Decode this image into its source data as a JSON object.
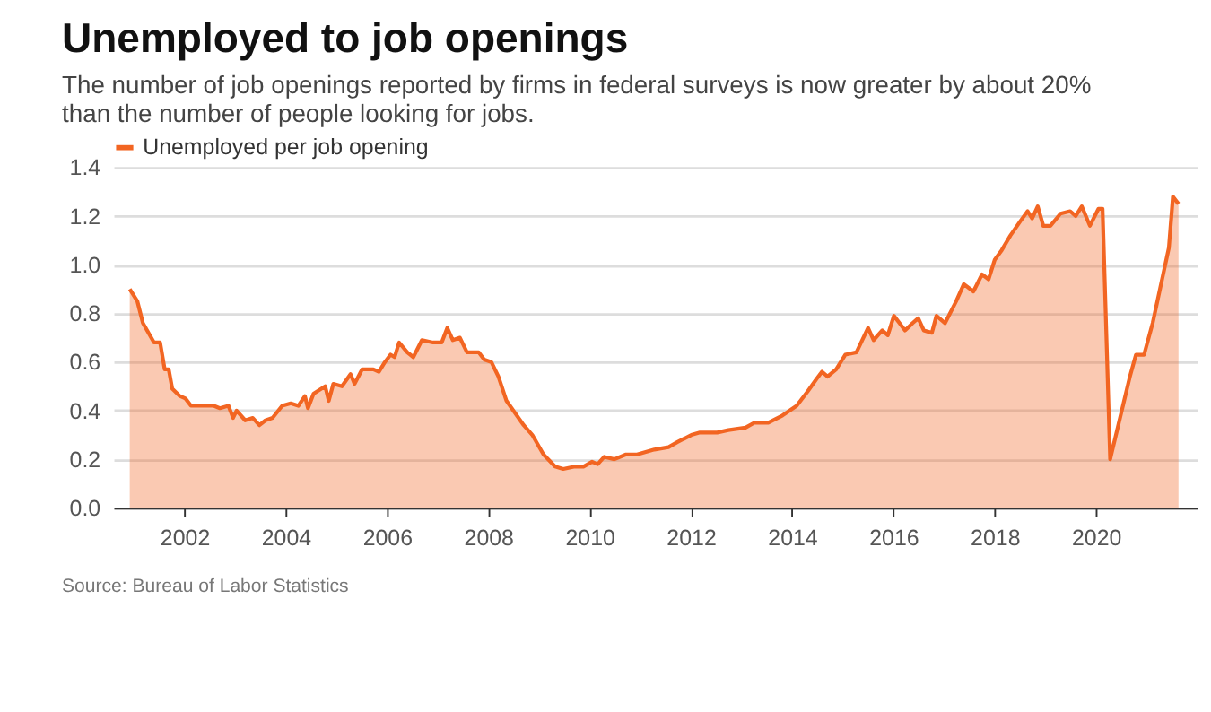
{
  "chart_data": {
    "type": "area",
    "title": "Unemployed to job openings",
    "subtitle": "The number of job openings reported by firms in federal surveys is now greater by about 20% than the number of people looking for jobs.",
    "annotations": [
      "Source: Bureau of Labor Statistics"
    ],
    "x": [
      2000.92,
      2001.07,
      2001.18,
      2001.4,
      2001.52,
      2001.61,
      2001.69,
      2001.76,
      2001.91,
      2002.02,
      2002.13,
      2002.3,
      2002.58,
      2002.7,
      2002.87,
      2002.96,
      2003.03,
      2003.2,
      2003.35,
      2003.48,
      2003.6,
      2003.74,
      2003.93,
      2004.1,
      2004.25,
      2004.38,
      2004.44,
      2004.55,
      2004.78,
      2004.85,
      2004.94,
      2005.11,
      2005.28,
      2005.36,
      2005.51,
      2005.73,
      2005.84,
      2005.96,
      2006.07,
      2006.15,
      2006.24,
      2006.4,
      2006.52,
      2006.69,
      2006.91,
      2007.08,
      2007.19,
      2007.3,
      2007.44,
      2007.58,
      2007.81,
      2007.92,
      2008.06,
      2008.2,
      2008.36,
      2008.7,
      2008.87,
      2009.09,
      2009.32,
      2009.48,
      2009.71,
      2009.88,
      2010.05,
      2010.16,
      2010.29,
      2010.49,
      2010.72,
      2010.94,
      2011.28,
      2011.56,
      2011.73,
      2012.01,
      2012.18,
      2012.52,
      2012.74,
      2013.08,
      2013.25,
      2013.53,
      2013.81,
      2014.09,
      2014.31,
      2014.48,
      2014.59,
      2014.7,
      2014.87,
      2015.05,
      2015.27,
      2015.5,
      2015.61,
      2015.78,
      2015.89,
      2016.01,
      2016.12,
      2016.23,
      2016.38,
      2016.49,
      2016.6,
      2016.76,
      2016.85,
      2017.02,
      2017.24,
      2017.39,
      2017.58,
      2017.75,
      2017.88,
      2018.0,
      2018.14,
      2018.31,
      2018.51,
      2018.65,
      2018.74,
      2018.85,
      2018.96,
      2019.1,
      2019.3,
      2019.49,
      2019.6,
      2019.72,
      2019.88,
      2020.05,
      2020.13,
      2020.28,
      2020.67,
      2020.79,
      2020.95,
      2021.12,
      2021.44,
      2021.52,
      2021.63
    ],
    "series": [
      {
        "name": "Unemployed per job opening",
        "color": "#f26522",
        "values": [
          0.9,
          0.85,
          0.76,
          0.68,
          0.68,
          0.57,
          0.57,
          0.49,
          0.46,
          0.45,
          0.42,
          0.42,
          0.42,
          0.41,
          0.42,
          0.37,
          0.4,
          0.36,
          0.37,
          0.34,
          0.36,
          0.37,
          0.42,
          0.43,
          0.42,
          0.46,
          0.41,
          0.47,
          0.5,
          0.44,
          0.51,
          0.5,
          0.55,
          0.51,
          0.57,
          0.57,
          0.56,
          0.6,
          0.63,
          0.62,
          0.68,
          0.64,
          0.62,
          0.69,
          0.68,
          0.68,
          0.74,
          0.69,
          0.7,
          0.64,
          0.64,
          0.61,
          0.6,
          0.54,
          0.44,
          0.34,
          0.3,
          0.22,
          0.17,
          0.16,
          0.17,
          0.17,
          0.19,
          0.18,
          0.21,
          0.2,
          0.22,
          0.22,
          0.24,
          0.25,
          0.27,
          0.3,
          0.31,
          0.31,
          0.32,
          0.33,
          0.35,
          0.35,
          0.38,
          0.42,
          0.48,
          0.53,
          0.56,
          0.54,
          0.57,
          0.63,
          0.64,
          0.74,
          0.69,
          0.73,
          0.71,
          0.79,
          0.76,
          0.73,
          0.76,
          0.78,
          0.73,
          0.72,
          0.79,
          0.76,
          0.85,
          0.92,
          0.89,
          0.96,
          0.94,
          1.02,
          1.06,
          1.12,
          1.18,
          1.22,
          1.19,
          1.24,
          1.16,
          1.16,
          1.21,
          1.22,
          1.2,
          1.24,
          1.16,
          1.23,
          1.23,
          0.2,
          0.54,
          0.63,
          0.63,
          0.76,
          1.07,
          1.28,
          1.25
        ]
      }
    ],
    "xlim": [
      2000.6,
      2022.0
    ],
    "xticks": [
      2002,
      2004,
      2006,
      2008,
      2010,
      2012,
      2014,
      2016,
      2018,
      2020
    ],
    "ylim": [
      0,
      1.4
    ],
    "yticks": [
      {
        "value": 0,
        "label": "0.0"
      },
      {
        "value": 0.2,
        "label": "0.2"
      },
      {
        "value": 0.4,
        "label": "0.4"
      },
      {
        "value": 0.6,
        "label": "0.6"
      },
      {
        "value": 0.8,
        "label": "0.8"
      },
      {
        "value": 1.0,
        "label": "1.0"
      },
      {
        "value": 1.2,
        "label": "1.2"
      },
      {
        "value": 1.4,
        "label": "1.4"
      }
    ],
    "grid": "y",
    "legend": "top left"
  }
}
